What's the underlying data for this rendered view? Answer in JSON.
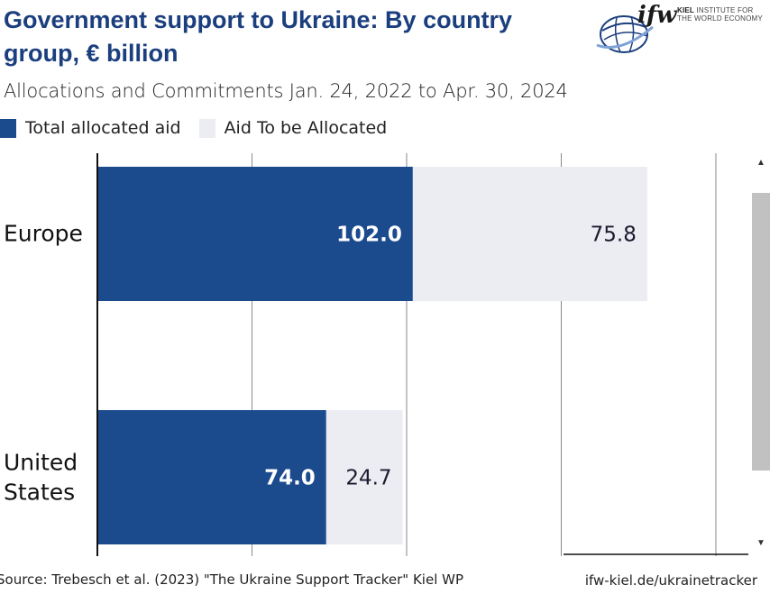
{
  "header": {
    "title": "Government support to Ukraine: By country group, € billion",
    "subtitle": "Allocations and Commitments Jan. 24, 2022 to Apr. 30, 2024"
  },
  "logo": {
    "wordmark": "ifw",
    "line1_bold": "KIEL",
    "line1_rest": " INSTITUTE FOR",
    "line2": "THE WORLD ECONOMY"
  },
  "colors": {
    "allocated": "#1b4a8d",
    "to_be_allocated": "#ececf3",
    "title": "#1b3f7e"
  },
  "chart_data": {
    "type": "bar",
    "orientation": "horizontal",
    "stacked": true,
    "categories": [
      "Europe",
      "United States"
    ],
    "series": [
      {
        "name": "Total allocated aid",
        "values": [
          102.0,
          74.0
        ]
      },
      {
        "name": "Aid To be Allocated",
        "values": [
          75.8,
          24.7
        ]
      }
    ],
    "xlim": [
      0,
      200
    ],
    "grid": true,
    "legend_position": "top-left",
    "value_labels": [
      [
        "102.0",
        "74.0"
      ],
      [
        "75.8",
        "24.7"
      ]
    ]
  },
  "footer": {
    "source": "Source: Trebesch et al. (2023) \"The Ukraine Support Tracker\" Kiel WP",
    "link": "ifw-kiel.de/ukrainetracker"
  },
  "scrollbar": {
    "up_icon": "▲",
    "down_icon": "▼"
  }
}
